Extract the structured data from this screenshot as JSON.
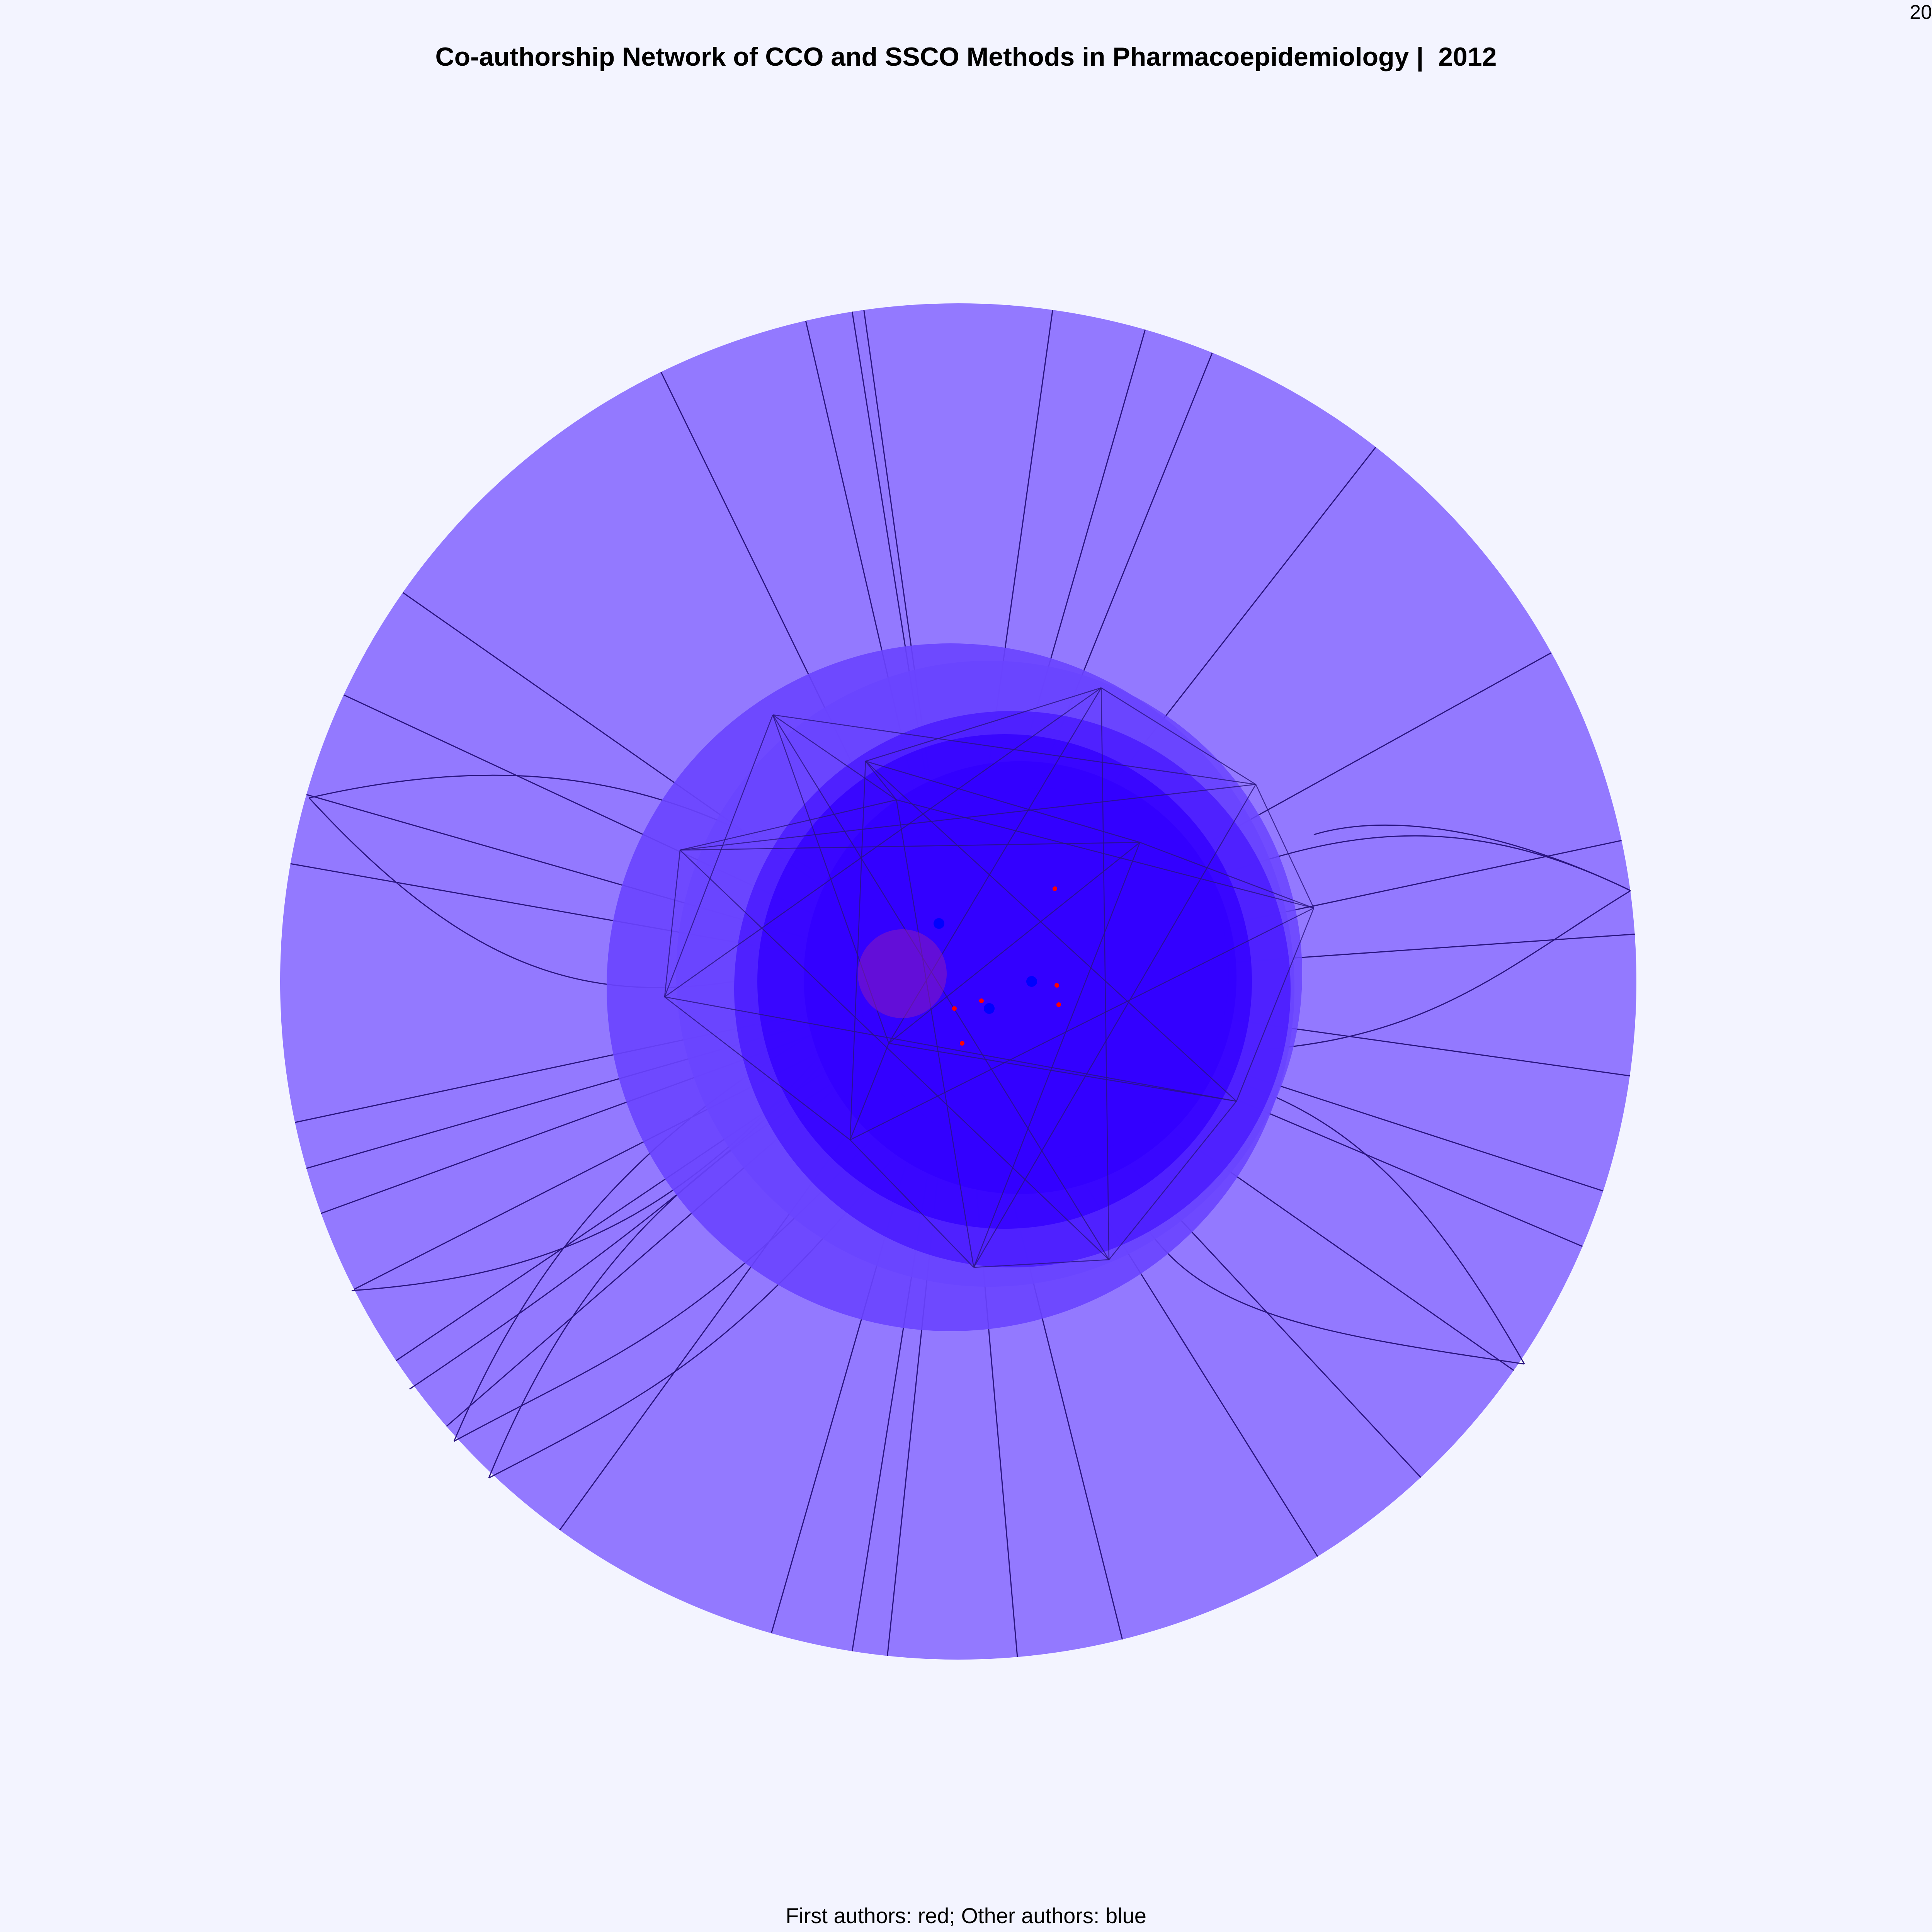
{
  "title": "Co-authorship Network of CCO and SSCO Methods in Pharmacoepidemiology |  2012",
  "corner_label": "20",
  "caption": "First authors: red; Other authors: blue",
  "colors": {
    "background": "#f3f4ff",
    "outer_fill": "#9379ff",
    "mid_fill": "#6a44ff",
    "core_fill": "#3300ff",
    "edge": "#2a1580",
    "first_author": "#ff0000",
    "other_author": "#0000ff",
    "title_text": "#000000"
  },
  "legend": {
    "first_authors": "red",
    "other_authors": "blue"
  }
}
